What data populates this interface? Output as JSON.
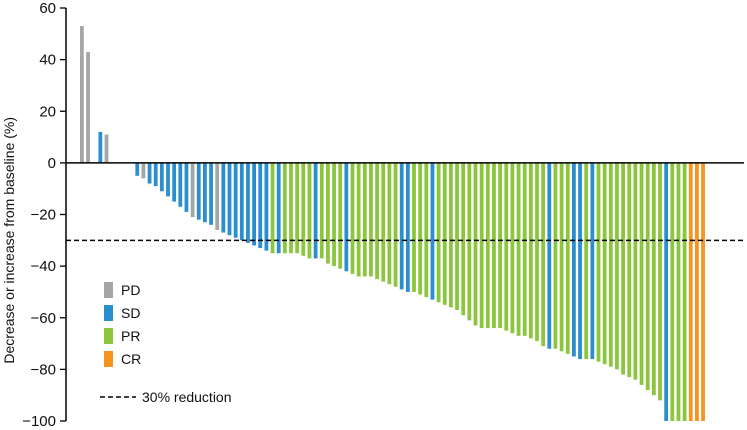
{
  "chart_data": {
    "type": "bar",
    "title": "",
    "xlabel": "",
    "ylabel": "Decrease or increase from baseline (%)",
    "ylim": [
      -100,
      60
    ],
    "yticks": [
      60,
      40,
      20,
      0,
      -20,
      -40,
      -60,
      -80,
      -100
    ],
    "ytick_labels": [
      "60",
      "40",
      "20",
      "0",
      "−20",
      "−40",
      "−60",
      "−80",
      "−100"
    ],
    "threshold": {
      "value": -30,
      "label": "30% reduction",
      "style": "dashed"
    },
    "grid": false,
    "legend_position": "bottom-left",
    "colors": {
      "PD": "#a6a6a6",
      "SD": "#2b8fcf",
      "PR": "#8cc63f",
      "CR": "#f7941d"
    },
    "legend": [
      {
        "key": "PD",
        "label": "PD"
      },
      {
        "key": "SD",
        "label": "SD"
      },
      {
        "key": "PR",
        "label": "PR"
      },
      {
        "key": "CR",
        "label": "CR"
      }
    ],
    "bars": [
      {
        "v": 53,
        "c": "PD"
      },
      {
        "v": 43,
        "c": "PD"
      },
      {
        "v": 0,
        "c": "PD"
      },
      {
        "v": 12,
        "c": "SD"
      },
      {
        "v": 11,
        "c": "PD"
      },
      {
        "v": 0,
        "c": "PD"
      },
      {
        "v": 0,
        "c": "PD"
      },
      {
        "v": 0,
        "c": "PD"
      },
      {
        "v": 0,
        "c": "PD"
      },
      {
        "v": -5,
        "c": "SD"
      },
      {
        "v": -6,
        "c": "PD"
      },
      {
        "v": -8,
        "c": "SD"
      },
      {
        "v": -9,
        "c": "SD"
      },
      {
        "v": -11,
        "c": "SD"
      },
      {
        "v": -13,
        "c": "SD"
      },
      {
        "v": -15,
        "c": "SD"
      },
      {
        "v": -17,
        "c": "SD"
      },
      {
        "v": -19,
        "c": "SD"
      },
      {
        "v": -21,
        "c": "PD"
      },
      {
        "v": -22,
        "c": "SD"
      },
      {
        "v": -23,
        "c": "SD"
      },
      {
        "v": -24,
        "c": "SD"
      },
      {
        "v": -26,
        "c": "PD"
      },
      {
        "v": -27,
        "c": "SD"
      },
      {
        "v": -28,
        "c": "SD"
      },
      {
        "v": -29,
        "c": "SD"
      },
      {
        "v": -30,
        "c": "SD"
      },
      {
        "v": -31,
        "c": "SD"
      },
      {
        "v": -32,
        "c": "SD"
      },
      {
        "v": -33,
        "c": "SD"
      },
      {
        "v": -34,
        "c": "SD"
      },
      {
        "v": -35,
        "c": "PR"
      },
      {
        "v": -35,
        "c": "SD"
      },
      {
        "v": -35,
        "c": "PR"
      },
      {
        "v": -35,
        "c": "PR"
      },
      {
        "v": -35,
        "c": "PR"
      },
      {
        "v": -36,
        "c": "PR"
      },
      {
        "v": -37,
        "c": "PR"
      },
      {
        "v": -37,
        "c": "SD"
      },
      {
        "v": -37,
        "c": "PR"
      },
      {
        "v": -39,
        "c": "PR"
      },
      {
        "v": -40,
        "c": "PR"
      },
      {
        "v": -41,
        "c": "PR"
      },
      {
        "v": -42,
        "c": "SD"
      },
      {
        "v": -43,
        "c": "PR"
      },
      {
        "v": -44,
        "c": "PR"
      },
      {
        "v": -44,
        "c": "PR"
      },
      {
        "v": -44,
        "c": "PR"
      },
      {
        "v": -45,
        "c": "PR"
      },
      {
        "v": -46,
        "c": "PR"
      },
      {
        "v": -47,
        "c": "PR"
      },
      {
        "v": -48,
        "c": "PR"
      },
      {
        "v": -49,
        "c": "SD"
      },
      {
        "v": -50,
        "c": "SD"
      },
      {
        "v": -50,
        "c": "PR"
      },
      {
        "v": -51,
        "c": "PR"
      },
      {
        "v": -52,
        "c": "PR"
      },
      {
        "v": -53,
        "c": "SD"
      },
      {
        "v": -54,
        "c": "PR"
      },
      {
        "v": -55,
        "c": "PR"
      },
      {
        "v": -56,
        "c": "PR"
      },
      {
        "v": -57,
        "c": "PR"
      },
      {
        "v": -59,
        "c": "PR"
      },
      {
        "v": -61,
        "c": "PR"
      },
      {
        "v": -63,
        "c": "PR"
      },
      {
        "v": -64,
        "c": "PR"
      },
      {
        "v": -64,
        "c": "PR"
      },
      {
        "v": -64,
        "c": "PR"
      },
      {
        "v": -64,
        "c": "PR"
      },
      {
        "v": -65,
        "c": "PR"
      },
      {
        "v": -66,
        "c": "PR"
      },
      {
        "v": -67,
        "c": "PR"
      },
      {
        "v": -67,
        "c": "PR"
      },
      {
        "v": -68,
        "c": "PR"
      },
      {
        "v": -69,
        "c": "PR"
      },
      {
        "v": -71,
        "c": "PR"
      },
      {
        "v": -72,
        "c": "SD"
      },
      {
        "v": -72,
        "c": "PR"
      },
      {
        "v": -73,
        "c": "PR"
      },
      {
        "v": -74,
        "c": "PR"
      },
      {
        "v": -75,
        "c": "SD"
      },
      {
        "v": -76,
        "c": "SD"
      },
      {
        "v": -76,
        "c": "PR"
      },
      {
        "v": -76,
        "c": "SD"
      },
      {
        "v": -77,
        "c": "PR"
      },
      {
        "v": -78,
        "c": "PR"
      },
      {
        "v": -79,
        "c": "PR"
      },
      {
        "v": -80,
        "c": "PR"
      },
      {
        "v": -82,
        "c": "PR"
      },
      {
        "v": -83,
        "c": "PR"
      },
      {
        "v": -84,
        "c": "PR"
      },
      {
        "v": -86,
        "c": "PR"
      },
      {
        "v": -88,
        "c": "PR"
      },
      {
        "v": -90,
        "c": "PR"
      },
      {
        "v": -92,
        "c": "PR"
      },
      {
        "v": -100,
        "c": "SD"
      },
      {
        "v": -100,
        "c": "PR"
      },
      {
        "v": -100,
        "c": "PR"
      },
      {
        "v": -100,
        "c": "PR"
      },
      {
        "v": -100,
        "c": "CR"
      },
      {
        "v": -100,
        "c": "CR"
      },
      {
        "v": -100,
        "c": "CR"
      }
    ]
  }
}
